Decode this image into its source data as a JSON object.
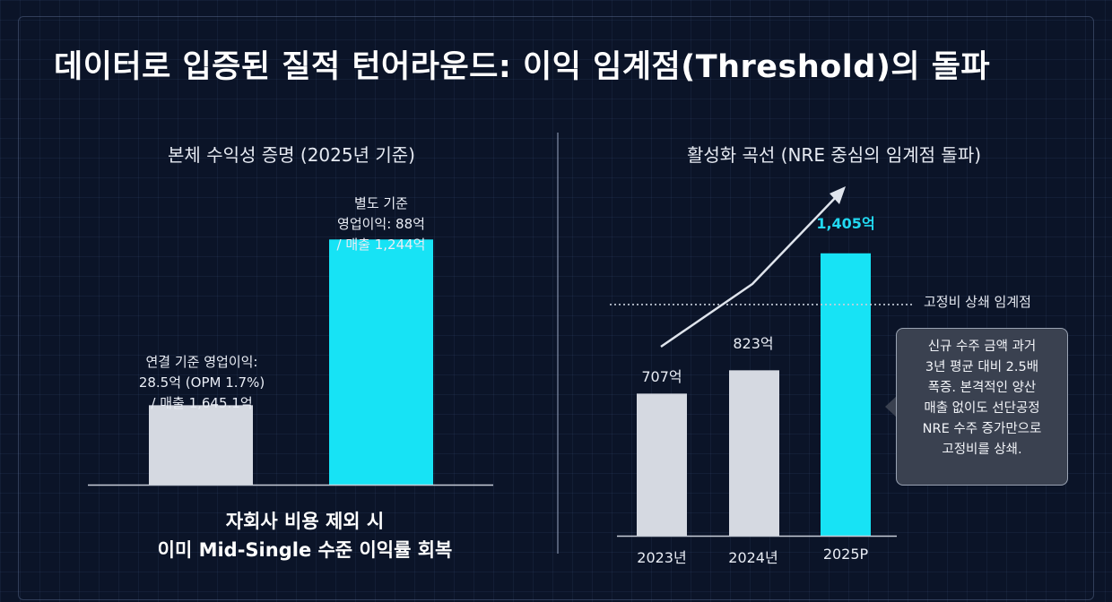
{
  "title": "데이터로 입증된 질적 턴어라운드: 이익 임계점(Threshold)의 돌파",
  "left_panel": {
    "subtitle": "본체 수익성 증명 (2025년 기준)",
    "bar1_label": [
      "연결 기준 영업이익:",
      "28.5억 (OPM 1.7%)",
      "/ 매출 1,645.1억"
    ],
    "bar2_label": [
      "별도 기준",
      "영업이익: 88억",
      "/ 매출 1,244억"
    ],
    "caption": [
      "자회사 비용 제외 시",
      "이미 Mid-Single 수준 이익률 회복"
    ]
  },
  "right_panel": {
    "subtitle": "활성화 곡선 (NRE 중심의 임계점 돌파)",
    "threshold_label": "고정비 상쇄 임계점",
    "callout": [
      "신규 수주 금액 과거",
      "3년 평균 대비 2.5배",
      "폭증. 본격적인 양산",
      "매출 없이도 선단공정",
      "NRE 수주 증가만으로",
      "고정비를 상쇄."
    ]
  },
  "colors": {
    "gray_bar": "#d5d9e1",
    "cyan_bar": "#17e3f5",
    "background": "#0b1428"
  },
  "chart_data": [
    {
      "type": "bar",
      "title": "본체 수익성 증명 (2025년 기준)",
      "categories": [
        "연결 기준",
        "별도 기준"
      ],
      "series": [
        {
          "name": "영업이익 (억)",
          "values": [
            28.5,
            88
          ]
        }
      ],
      "extra": {
        "opm": "1.7%",
        "revenue": [
          1645.1,
          1244
        ]
      },
      "ylim": [
        0,
        100
      ]
    },
    {
      "type": "bar",
      "title": "활성화 곡선 (NRE 중심의 임계점 돌파)",
      "categories": [
        "2023년",
        "2024년",
        "2025P"
      ],
      "values": [
        707,
        823,
        1405
      ],
      "value_labels": [
        "707억",
        "823억",
        "1,405억"
      ],
      "threshold": 1150,
      "threshold_label": "고정비 상쇄 임계점",
      "ylim": [
        0,
        1560
      ]
    }
  ]
}
